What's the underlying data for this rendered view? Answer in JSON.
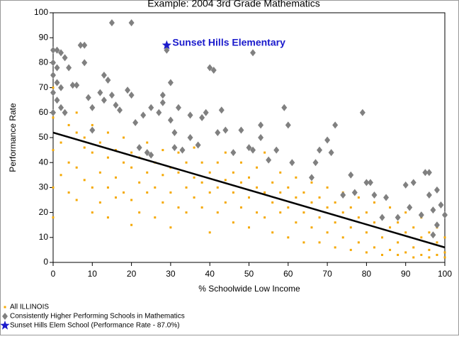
{
  "chart_data": {
    "type": "scatter",
    "title": "Example: 2004 3rd Grade Mathematics",
    "xlabel": "% Schoolwide Low Income",
    "ylabel": "Performance Rate",
    "annotation": "Sunset Hills Elementary",
    "xlim": [
      0,
      100
    ],
    "ylim": [
      0,
      100
    ],
    "xticks": [
      0,
      10,
      20,
      30,
      40,
      50,
      60,
      70,
      80,
      90,
      100
    ],
    "yticks": [
      0,
      10,
      20,
      30,
      40,
      50,
      60,
      70,
      80,
      90,
      100
    ],
    "series": [
      {
        "name": "All ILLINOIS",
        "color": "#f5a800",
        "marker": "square",
        "x": [
          0,
          0,
          0,
          0,
          0,
          2,
          2,
          2,
          4,
          4,
          4,
          6,
          6,
          6,
          6,
          8,
          8,
          8,
          10,
          10,
          10,
          10,
          12,
          12,
          12,
          14,
          14,
          14,
          14,
          16,
          16,
          16,
          18,
          18,
          18,
          20,
          20,
          20,
          20,
          22,
          22,
          22,
          24,
          24,
          24,
          26,
          26,
          26,
          28,
          28,
          28,
          30,
          30,
          30,
          32,
          32,
          32,
          34,
          34,
          34,
          36,
          36,
          36,
          38,
          38,
          38,
          40,
          40,
          40,
          42,
          42,
          42,
          44,
          44,
          44,
          46,
          46,
          46,
          48,
          48,
          48,
          50,
          50,
          50,
          52,
          52,
          52,
          54,
          54,
          54,
          56,
          56,
          56,
          58,
          58,
          58,
          60,
          60,
          60,
          62,
          62,
          62,
          64,
          64,
          64,
          66,
          66,
          66,
          68,
          68,
          68,
          70,
          70,
          70,
          72,
          72,
          72,
          74,
          74,
          74,
          76,
          76,
          76,
          78,
          78,
          78,
          80,
          80,
          80,
          82,
          82,
          82,
          84,
          84,
          84,
          86,
          86,
          86,
          88,
          88,
          88,
          90,
          90,
          90,
          92,
          92,
          92,
          94,
          94,
          94,
          96,
          96,
          96,
          98,
          98,
          98,
          100,
          100,
          100
        ],
        "values": [
          70,
          58,
          45,
          30,
          18,
          62,
          48,
          35,
          55,
          40,
          28,
          52,
          60,
          38,
          25,
          46,
          33,
          50,
          44,
          30,
          20,
          55,
          48,
          36,
          24,
          42,
          30,
          52,
          18,
          45,
          34,
          26,
          40,
          28,
          50,
          38,
          44,
          25,
          15,
          42,
          32,
          20,
          36,
          48,
          28,
          40,
          30,
          18,
          35,
          45,
          24,
          38,
          28,
          14,
          36,
          44,
          22,
          30,
          40,
          20,
          34,
          26,
          46,
          32,
          22,
          40,
          36,
          28,
          12,
          30,
          40,
          20,
          33,
          24,
          44,
          28,
          36,
          16,
          32,
          22,
          40,
          26,
          34,
          14,
          30,
          20,
          38,
          28,
          18,
          44,
          24,
          32,
          12,
          28,
          20,
          36,
          22,
          30,
          10,
          26,
          16,
          34,
          20,
          28,
          8,
          24,
          14,
          32,
          18,
          26,
          8,
          22,
          12,
          30,
          16,
          24,
          6,
          20,
          10,
          28,
          14,
          22,
          5,
          18,
          8,
          26,
          12,
          20,
          4,
          16,
          6,
          24,
          10,
          18,
          3,
          14,
          5,
          22,
          8,
          16,
          3,
          12,
          4,
          20,
          6,
          14,
          2,
          10,
          3,
          18,
          5,
          12,
          2,
          8,
          3,
          14,
          4,
          10,
          2
        ]
      },
      {
        "name": "Consistently Higher Performing Schools in Mathematics",
        "color": "#808080",
        "marker": "diamond",
        "x": [
          0,
          1,
          2,
          3,
          0,
          1,
          0,
          1,
          2,
          0,
          1,
          2,
          3,
          0,
          4,
          5,
          6,
          7,
          8,
          8,
          9,
          10,
          10,
          12,
          13,
          14,
          15,
          15,
          16,
          13,
          17,
          19,
          20,
          20,
          21,
          22,
          23,
          24,
          25,
          25,
          27,
          28,
          28,
          29,
          30,
          30,
          31,
          31,
          32,
          33,
          35,
          35,
          37,
          38,
          39,
          40,
          41,
          42,
          43,
          44,
          46,
          48,
          50,
          51,
          51,
          53,
          53,
          55,
          57,
          59,
          60,
          61,
          66,
          67,
          68,
          70,
          71,
          72,
          74,
          76,
          77,
          79,
          80,
          81,
          82,
          84,
          85,
          88,
          90,
          91,
          92,
          94,
          95,
          96,
          96,
          97,
          98,
          99,
          100,
          98,
          97
        ],
        "values": [
          85,
          85,
          84,
          82,
          80,
          78,
          75,
          72,
          70,
          68,
          65,
          62,
          60,
          60,
          78,
          71,
          71,
          87,
          87,
          80,
          66,
          62,
          53,
          68,
          75,
          73,
          96,
          67,
          63,
          65,
          61,
          69,
          96,
          67,
          56,
          46,
          59,
          44,
          62,
          43,
          60,
          67,
          64,
          85,
          72,
          57,
          52,
          46,
          62,
          45,
          59,
          50,
          47,
          58,
          60,
          78,
          77,
          52,
          61,
          53,
          44,
          53,
          46,
          84,
          45,
          50,
          55,
          41,
          45,
          62,
          55,
          40,
          34,
          40,
          45,
          49,
          44,
          55,
          27,
          35,
          28,
          60,
          32,
          32,
          27,
          18,
          26,
          18,
          31,
          22,
          32,
          19,
          36,
          36,
          27,
          21,
          29,
          23,
          19,
          15,
          11
        ]
      },
      {
        "name": "Sunset Hills Elem School (Performance Rate - 87.0%)",
        "color": "#1a1acc",
        "marker": "star",
        "x": [
          29
        ],
        "values": [
          87
        ]
      }
    ],
    "trend": {
      "color": "#000000",
      "x": [
        0,
        100
      ],
      "values": [
        52,
        6
      ]
    }
  }
}
